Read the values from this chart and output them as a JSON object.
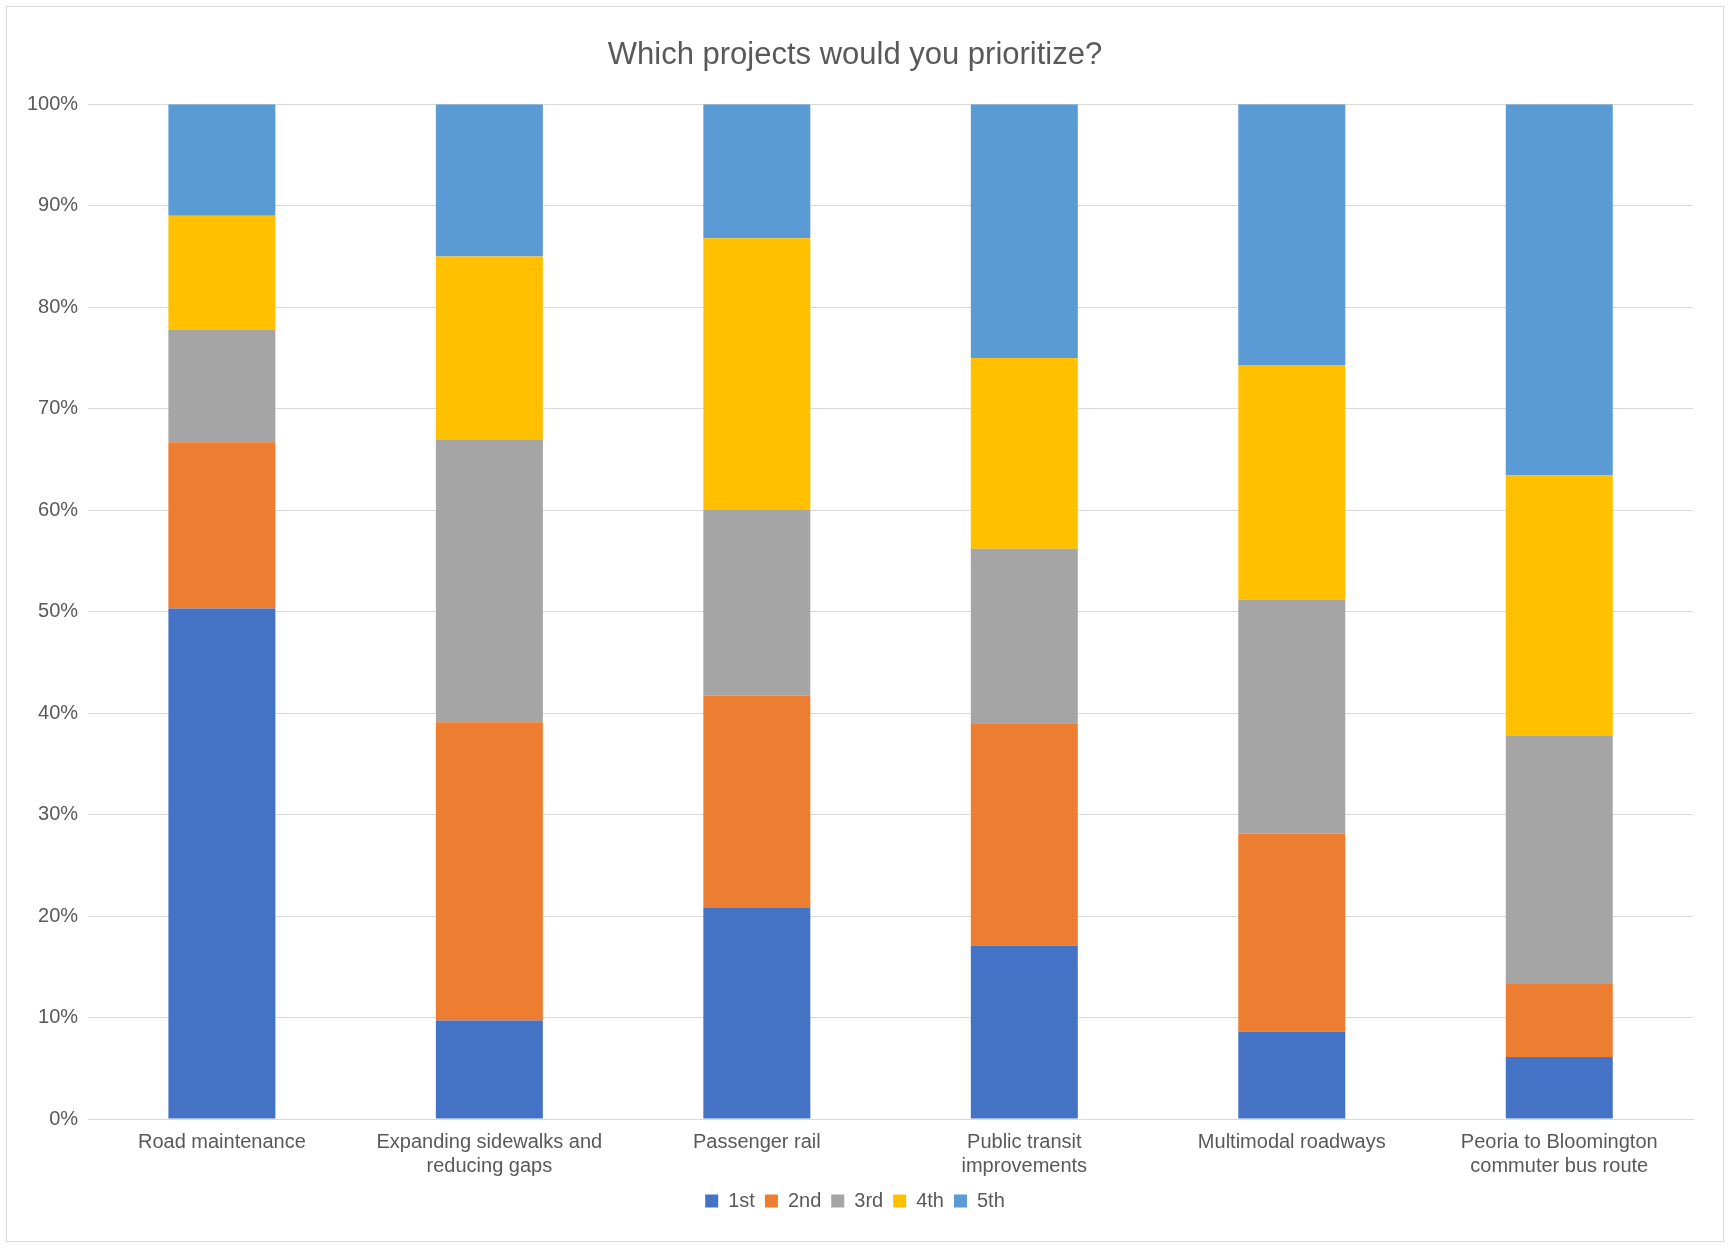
{
  "chart_data": {
    "type": "bar",
    "title": "Which projects would you prioritize?",
    "stacked": true,
    "categories": [
      "Road maintenance",
      "Expanding sidewalks and reducing gaps",
      "Passenger rail",
      "Public transit improvements",
      "Multimodal roadways",
      "Peoria to Bloomington commuter bus route"
    ],
    "series": [
      {
        "name": "1st",
        "color": "#4472c4",
        "values": [
          50.3,
          9.7,
          20.8,
          17.1,
          8.6,
          6.1
        ]
      },
      {
        "name": "2nd",
        "color": "#ed7d31",
        "values": [
          16.4,
          29.4,
          20.9,
          21.9,
          19.5,
          7.2
        ]
      },
      {
        "name": "3rd",
        "color": "#a5a5a5",
        "values": [
          11.1,
          27.8,
          18.3,
          17.2,
          23.1,
          24.5
        ]
      },
      {
        "name": "4th",
        "color": "#ffc000",
        "values": [
          11.2,
          18.1,
          26.8,
          18.8,
          23.1,
          25.6
        ]
      },
      {
        "name": "5th",
        "color": "#5b9bd5",
        "values": [
          11.0,
          15.0,
          13.2,
          25.0,
          25.7,
          36.6
        ]
      }
    ],
    "ylim": [
      0,
      100
    ],
    "yticks": [
      {
        "value": 0,
        "label": "0%"
      },
      {
        "value": 10,
        "label": "10%"
      },
      {
        "value": 20,
        "label": "20%"
      },
      {
        "value": 30,
        "label": "30%"
      },
      {
        "value": 40,
        "label": "40%"
      },
      {
        "value": 50,
        "label": "50%"
      },
      {
        "value": 60,
        "label": "60%"
      },
      {
        "value": 70,
        "label": "70%"
      },
      {
        "value": 80,
        "label": "80%"
      },
      {
        "value": 90,
        "label": "90%"
      },
      {
        "value": 100,
        "label": "100%"
      }
    ],
    "grid": "y",
    "legend": "bottom"
  }
}
